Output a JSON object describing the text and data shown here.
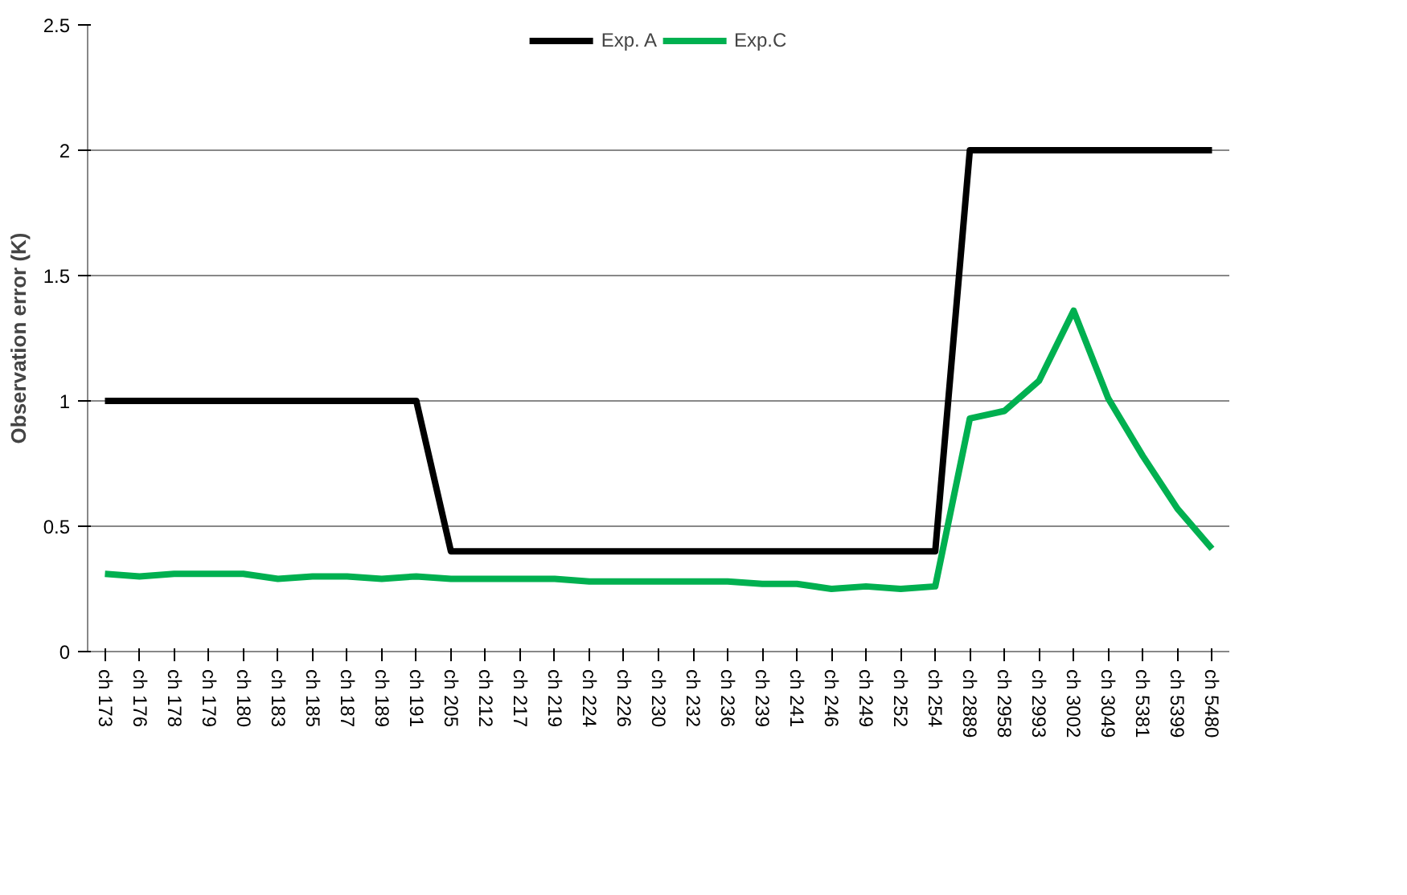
{
  "chart_data": {
    "type": "line",
    "ylabel": "Observation error (K)",
    "categories": [
      "ch 173",
      "ch 176",
      "ch 178",
      "ch 179",
      "ch 180",
      "ch 183",
      "ch 185",
      "ch 187",
      "ch 189",
      "ch 191",
      "ch 205",
      "ch 212",
      "ch 217",
      "ch 219",
      "ch 224",
      "ch 226",
      "ch 230",
      "ch 232",
      "ch 236",
      "ch 239",
      "ch 241",
      "ch 246",
      "ch 249",
      "ch 252",
      "ch 254",
      "ch 2889",
      "ch 2958",
      "ch 2993",
      "ch 3002",
      "ch 3049",
      "ch 5381",
      "ch 5399",
      "ch 5480"
    ],
    "series": [
      {
        "name": "Exp. A",
        "color": "#000000",
        "values": [
          1,
          1,
          1,
          1,
          1,
          1,
          1,
          1,
          1,
          1,
          0.4,
          0.4,
          0.4,
          0.4,
          0.4,
          0.4,
          0.4,
          0.4,
          0.4,
          0.4,
          0.4,
          0.4,
          0.4,
          0.4,
          0.4,
          2,
          2,
          2,
          2,
          2,
          2,
          2,
          2
        ]
      },
      {
        "name": "Exp.C",
        "color": "#00b050",
        "values": [
          0.31,
          0.3,
          0.31,
          0.31,
          0.31,
          0.29,
          0.3,
          0.3,
          0.29,
          0.3,
          0.29,
          0.29,
          0.29,
          0.29,
          0.28,
          0.28,
          0.28,
          0.28,
          0.28,
          0.27,
          0.27,
          0.25,
          0.26,
          0.25,
          0.26,
          0.93,
          0.96,
          1.08,
          1.36,
          1.01,
          0.78,
          0.57,
          0.41
        ]
      }
    ],
    "ylim": [
      0,
      2.5
    ],
    "yticks": [
      0,
      0.5,
      1,
      1.5,
      2,
      2.5
    ],
    "grid": "y",
    "legend": "top",
    "marker": "none",
    "line_style": "solid"
  }
}
